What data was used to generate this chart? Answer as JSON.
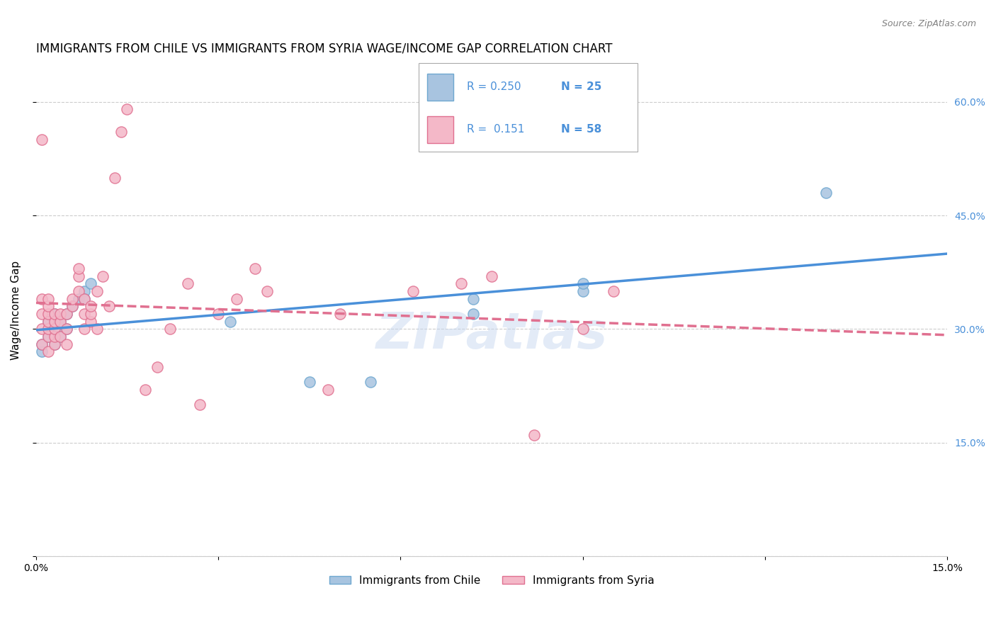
{
  "title": "IMMIGRANTS FROM CHILE VS IMMIGRANTS FROM SYRIA WAGE/INCOME GAP CORRELATION CHART",
  "source": "Source: ZipAtlas.com",
  "ylabel": "Wage/Income Gap",
  "watermark": "ZIPatlas",
  "x_min": 0.0,
  "x_max": 0.15,
  "y_min": 0.0,
  "y_max": 0.65,
  "grid_color": "#cccccc",
  "background_color": "#ffffff",
  "chile_color": "#a8c4e0",
  "chile_edge_color": "#6fa8d0",
  "syria_color": "#f4b8c8",
  "syria_edge_color": "#e07090",
  "chile_R": 0.25,
  "chile_N": 25,
  "syria_R": 0.151,
  "syria_N": 58,
  "chile_line_color": "#4a90d9",
  "syria_line_color": "#e07090",
  "legend_chile_label": "Immigrants from Chile",
  "legend_syria_label": "Immigrants from Syria",
  "chile_x": [
    0.001,
    0.001,
    0.002,
    0.002,
    0.002,
    0.003,
    0.003,
    0.003,
    0.004,
    0.004,
    0.005,
    0.005,
    0.006,
    0.007,
    0.008,
    0.008,
    0.009,
    0.032,
    0.045,
    0.055,
    0.072,
    0.072,
    0.09,
    0.09,
    0.13
  ],
  "chile_y": [
    0.27,
    0.28,
    0.29,
    0.3,
    0.31,
    0.28,
    0.3,
    0.32,
    0.29,
    0.31,
    0.3,
    0.32,
    0.33,
    0.34,
    0.35,
    0.34,
    0.36,
    0.31,
    0.23,
    0.23,
    0.34,
    0.32,
    0.35,
    0.36,
    0.48
  ],
  "syria_x": [
    0.001,
    0.001,
    0.001,
    0.001,
    0.001,
    0.002,
    0.002,
    0.002,
    0.002,
    0.002,
    0.002,
    0.002,
    0.003,
    0.003,
    0.003,
    0.003,
    0.003,
    0.004,
    0.004,
    0.004,
    0.005,
    0.005,
    0.005,
    0.006,
    0.006,
    0.007,
    0.007,
    0.007,
    0.008,
    0.008,
    0.008,
    0.009,
    0.009,
    0.009,
    0.01,
    0.01,
    0.011,
    0.012,
    0.013,
    0.014,
    0.015,
    0.018,
    0.02,
    0.022,
    0.025,
    0.027,
    0.03,
    0.033,
    0.036,
    0.038,
    0.048,
    0.05,
    0.062,
    0.07,
    0.075,
    0.082,
    0.09,
    0.095
  ],
  "syria_y": [
    0.28,
    0.3,
    0.32,
    0.34,
    0.55,
    0.27,
    0.29,
    0.3,
    0.31,
    0.32,
    0.33,
    0.34,
    0.28,
    0.29,
    0.3,
    0.31,
    0.32,
    0.29,
    0.31,
    0.32,
    0.28,
    0.3,
    0.32,
    0.33,
    0.34,
    0.35,
    0.37,
    0.38,
    0.3,
    0.32,
    0.34,
    0.31,
    0.32,
    0.33,
    0.3,
    0.35,
    0.37,
    0.33,
    0.5,
    0.56,
    0.59,
    0.22,
    0.25,
    0.3,
    0.36,
    0.2,
    0.32,
    0.34,
    0.38,
    0.35,
    0.22,
    0.32,
    0.35,
    0.36,
    0.37,
    0.16,
    0.3,
    0.35
  ],
  "marker_size": 120,
  "title_fontsize": 12,
  "axis_label_fontsize": 11,
  "tick_fontsize": 10,
  "legend_fontsize": 11
}
